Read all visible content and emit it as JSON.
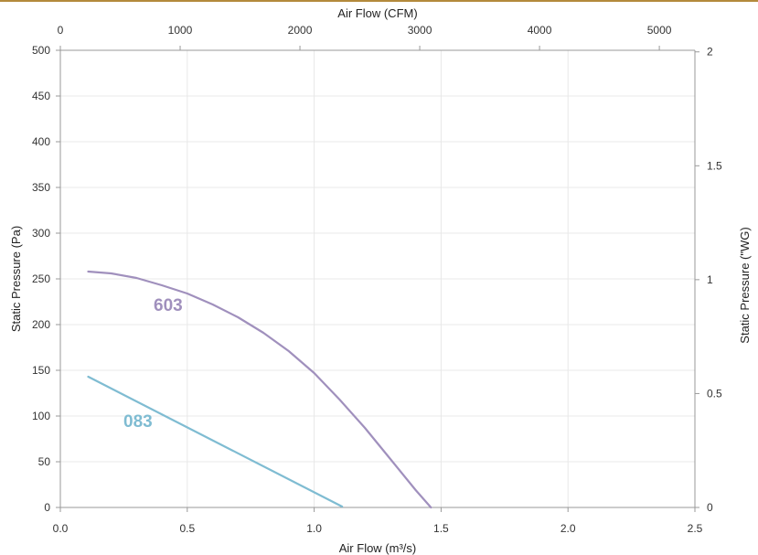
{
  "colors": {
    "brand_bar": "#b38a3c",
    "grid": "#e8e8e8",
    "axis": "#999999",
    "series_603": "#a090bd",
    "series_083": "#7fbcd2"
  },
  "chart_data": {
    "type": "line",
    "grid": true,
    "legend": "none",
    "x_bottom": {
      "label": "Air Flow (m³/s)",
      "range": [
        0,
        2.5
      ],
      "ticks": [
        "0.0",
        "0.5",
        "1.0",
        "1.5",
        "2.0",
        "2.5"
      ]
    },
    "x_top": {
      "label": "Air Flow (CFM)",
      "range": [
        0,
        5297
      ],
      "ticks": [
        "0",
        "1000",
        "2000",
        "3000",
        "4000",
        "5000"
      ]
    },
    "y_left": {
      "label": "Static Pressure (Pa)",
      "range": [
        0,
        500
      ],
      "ticks": [
        "0",
        "50",
        "100",
        "150",
        "200",
        "250",
        "300",
        "350",
        "400",
        "450",
        "500"
      ]
    },
    "y_right": {
      "label": "Static Pressure (\"WG)",
      "range": [
        0,
        2.007
      ],
      "ticks": [
        "0",
        "0.5",
        "1",
        "1.5",
        "2"
      ]
    },
    "series": [
      {
        "name": "603",
        "color": "#a090bd",
        "x": [
          0.11,
          0.2,
          0.3,
          0.4,
          0.5,
          0.6,
          0.7,
          0.8,
          0.9,
          1.0,
          1.1,
          1.2,
          1.3,
          1.4,
          1.46
        ],
        "y": [
          258,
          256,
          251,
          243,
          234,
          222,
          208,
          191,
          171,
          147,
          118,
          87,
          53,
          19,
          0
        ]
      },
      {
        "name": "083",
        "color": "#7fbcd2",
        "x": [
          0.11,
          1.11
        ],
        "y": [
          143,
          1
        ]
      }
    ]
  }
}
